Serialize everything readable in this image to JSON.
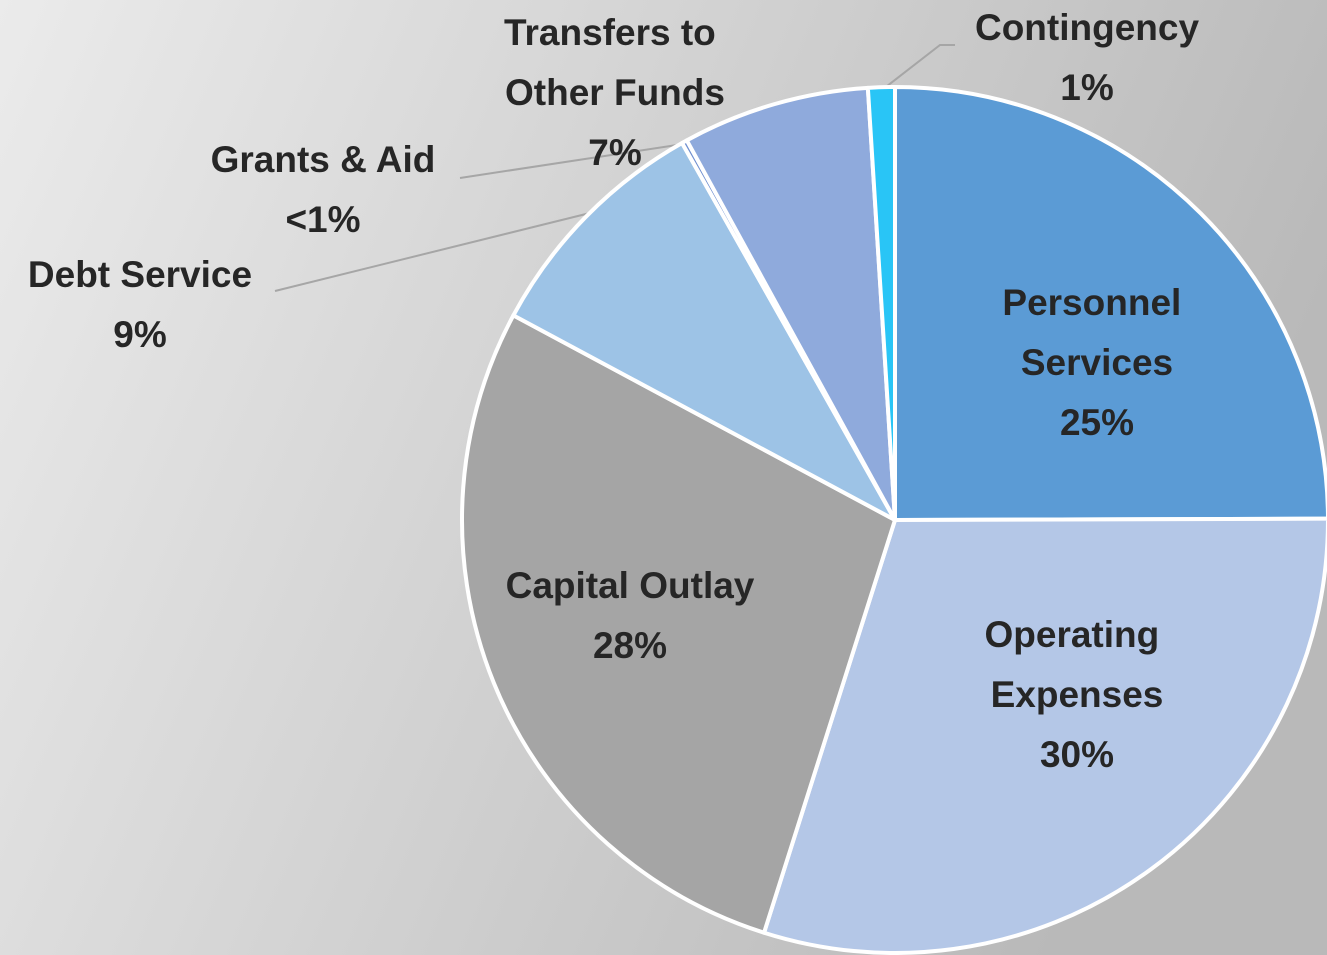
{
  "chart_data": {
    "type": "pie",
    "categories": [
      "Personnel Services",
      "Operating Expenses",
      "Capital Outlay",
      "Debt Service",
      "Grants & Aid",
      "Transfers to Other Funds",
      "Contingency"
    ],
    "values": [
      25,
      30,
      28,
      9,
      0.2,
      7,
      1
    ],
    "value_labels": [
      "25%",
      "30%",
      "28%",
      "9%",
      "<1%",
      "7%",
      "1%"
    ],
    "colors": [
      "#5b9bd5",
      "#b4c7e7",
      "#a5a5a5",
      "#9dc3e6",
      "#6f8fd0",
      "#8faadc",
      "#29c5f6"
    ]
  }
}
